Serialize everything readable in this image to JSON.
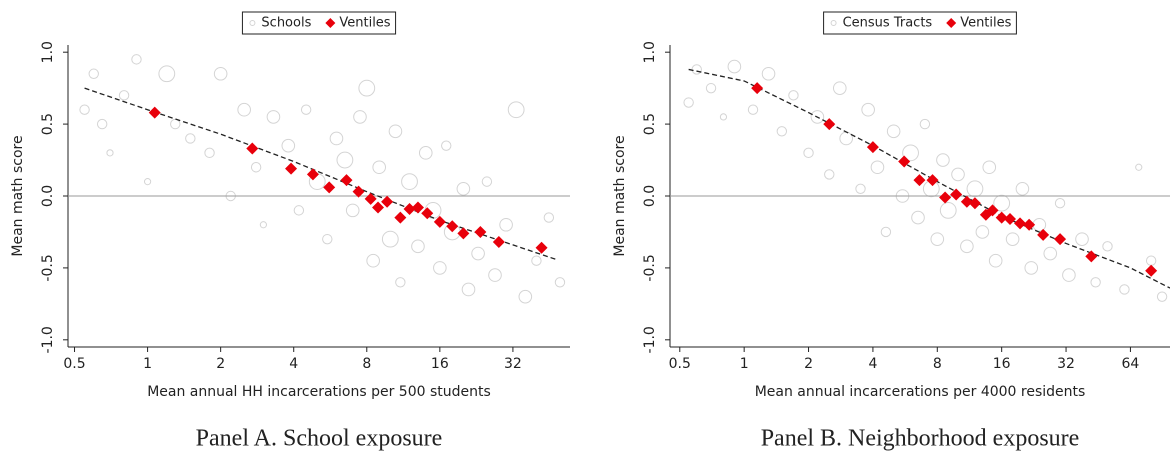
{
  "chart_data": [
    {
      "type": "scatter",
      "title": "Panel A. School exposure",
      "x_label": "Mean annual HH incarcerations per 500 students",
      "y_label": "Mean math score",
      "log_x": 2,
      "xlim": [
        0.47,
        55
      ],
      "ylim": [
        -1.05,
        1.05
      ],
      "xticks": [
        0.5,
        1,
        2,
        4,
        8,
        16,
        32
      ],
      "yticks": [
        {
          "value": -1,
          "label": "-1.0"
        },
        {
          "value": -0.5,
          "label": "-0.5"
        },
        {
          "value": 0,
          "label": "0.0"
        },
        {
          "value": 0.5,
          "label": "0.5"
        },
        {
          "value": 1,
          "label": "1.0"
        }
      ],
      "hline": 0,
      "legend": "top",
      "series": [
        {
          "name": "Schools",
          "color": "#d4d4d4",
          "marker": "circle",
          "x": [
            0.55,
            0.6,
            0.65,
            0.7,
            0.8,
            0.9,
            1.0,
            1.2,
            1.3,
            1.5,
            1.8,
            2.0,
            2.2,
            2.5,
            2.8,
            3.0,
            3.3,
            3.8,
            4.2,
            4.5,
            5.0,
            5.5,
            6.0,
            6.5,
            7,
            7.5,
            8,
            8.5,
            9,
            10,
            10.5,
            11,
            12,
            13,
            14,
            15,
            16,
            17,
            18,
            20,
            21,
            23,
            25,
            27,
            30,
            33,
            36,
            40,
            45,
            50
          ],
          "values": [
            0.6,
            0.85,
            0.5,
            0.3,
            0.7,
            0.95,
            0.1,
            0.85,
            0.5,
            0.4,
            0.3,
            0.85,
            0.0,
            0.6,
            0.2,
            -0.2,
            0.55,
            0.35,
            -0.1,
            0.6,
            0.1,
            -0.3,
            0.4,
            0.25,
            -0.1,
            0.55,
            0.75,
            -0.45,
            0.2,
            -0.3,
            0.45,
            -0.6,
            0.1,
            -0.35,
            0.3,
            -0.1,
            -0.5,
            0.35,
            -0.25,
            0.05,
            -0.65,
            -0.4,
            0.1,
            -0.55,
            -0.2,
            0.6,
            -0.7,
            -0.45,
            -0.15,
            -0.6
          ],
          "sizes": [
            2,
            2,
            2,
            1,
            2,
            2,
            1,
            4,
            2,
            2,
            2,
            3,
            2,
            3,
            2,
            1,
            3,
            3,
            2,
            2,
            4,
            2,
            3,
            4,
            3,
            3,
            4,
            3,
            3,
            4,
            3,
            2,
            4,
            3,
            3,
            4,
            3,
            2,
            4,
            3,
            3,
            3,
            2,
            3,
            3,
            4,
            3,
            2,
            2,
            2
          ]
        },
        {
          "name": "Ventiles",
          "color": "#e8000b",
          "marker": "diamond",
          "x": [
            1.07,
            2.7,
            3.9,
            4.8,
            5.6,
            6.6,
            7.4,
            8.3,
            8.9,
            9.7,
            11.0,
            12.0,
            13.0,
            14.2,
            16.0,
            18.0,
            20.0,
            23.5,
            28.0,
            42
          ],
          "values": [
            0.58,
            0.33,
            0.19,
            0.15,
            0.06,
            0.11,
            0.03,
            -0.02,
            -0.08,
            -0.04,
            -0.15,
            -0.09,
            -0.08,
            -0.12,
            -0.18,
            -0.21,
            -0.26,
            -0.25,
            -0.32,
            -0.36
          ]
        }
      ],
      "trend": {
        "x": [
          0.55,
          1,
          2,
          4,
          8,
          16,
          32,
          48
        ],
        "values": [
          0.75,
          0.6,
          0.43,
          0.24,
          0.03,
          -0.17,
          -0.34,
          -0.44
        ]
      }
    },
    {
      "type": "scatter",
      "title": "Panel B. Neighborhood exposure",
      "x_label": "Mean annual incarcerations per 4000 residents",
      "y_label": "Mean math score",
      "log_x": 2,
      "xlim": [
        0.45,
        98
      ],
      "ylim": [
        -1.05,
        1.05
      ],
      "xticks": [
        0.5,
        1,
        2,
        4,
        8,
        16,
        32,
        64
      ],
      "yticks": [
        {
          "value": -1,
          "label": "-1.0"
        },
        {
          "value": -0.5,
          "label": "-0.5"
        },
        {
          "value": 0,
          "label": "0.0"
        },
        {
          "value": 0.5,
          "label": "0.5"
        },
        {
          "value": 1,
          "label": "1.0"
        }
      ],
      "hline": 0,
      "legend": "top",
      "series": [
        {
          "name": "Census Tracts",
          "color": "#d4d4d4",
          "marker": "circle",
          "x": [
            0.55,
            0.6,
            0.7,
            0.8,
            0.9,
            1.1,
            1.3,
            1.5,
            1.7,
            2.0,
            2.2,
            2.5,
            2.8,
            3.0,
            3.5,
            3.8,
            4.2,
            4.6,
            5,
            5.5,
            6,
            6.5,
            7,
            7.5,
            8,
            8.5,
            9,
            10,
            11,
            12,
            13,
            14,
            15,
            16,
            18,
            20,
            22,
            24,
            27,
            30,
            33,
            38,
            44,
            50,
            60,
            70,
            80,
            90
          ],
          "values": [
            0.65,
            0.88,
            0.75,
            0.55,
            0.9,
            0.6,
            0.85,
            0.45,
            0.7,
            0.3,
            0.55,
            0.15,
            0.75,
            0.4,
            0.05,
            0.6,
            0.2,
            -0.25,
            0.45,
            0.0,
            0.3,
            -0.15,
            0.5,
            0.05,
            -0.3,
            0.25,
            -0.1,
            0.15,
            -0.35,
            0.05,
            -0.25,
            0.2,
            -0.45,
            -0.05,
            -0.3,
            0.05,
            -0.5,
            -0.2,
            -0.4,
            -0.05,
            -0.55,
            -0.3,
            -0.6,
            -0.35,
            -0.65,
            0.2,
            -0.45,
            -0.7
          ],
          "sizes": [
            2,
            2,
            2,
            1,
            3,
            2,
            3,
            2,
            2,
            2,
            3,
            2,
            3,
            3,
            2,
            3,
            3,
            2,
            3,
            3,
            4,
            3,
            2,
            4,
            3,
            3,
            4,
            3,
            3,
            4,
            3,
            3,
            3,
            4,
            3,
            3,
            3,
            3,
            3,
            2,
            3,
            3,
            2,
            2,
            2,
            1,
            2,
            2
          ]
        },
        {
          "name": "Ventiles",
          "color": "#e8000b",
          "marker": "diamond",
          "x": [
            1.15,
            2.5,
            4.0,
            5.6,
            6.6,
            7.6,
            8.7,
            9.8,
            11.0,
            12.0,
            13.5,
            14.5,
            16.0,
            17.5,
            19.5,
            21.5,
            25.0,
            30.0,
            42.0,
            80
          ],
          "values": [
            0.75,
            0.5,
            0.34,
            0.24,
            0.11,
            0.11,
            -0.01,
            0.01,
            -0.04,
            -0.05,
            -0.13,
            -0.1,
            -0.15,
            -0.16,
            -0.19,
            -0.2,
            -0.27,
            -0.3,
            -0.42,
            -0.52
          ]
        }
      ],
      "trend": {
        "x": [
          0.55,
          1,
          2,
          4,
          8,
          16,
          32,
          64,
          98
        ],
        "values": [
          0.88,
          0.8,
          0.58,
          0.35,
          0.1,
          -0.14,
          -0.33,
          -0.5,
          -0.64
        ]
      }
    }
  ]
}
